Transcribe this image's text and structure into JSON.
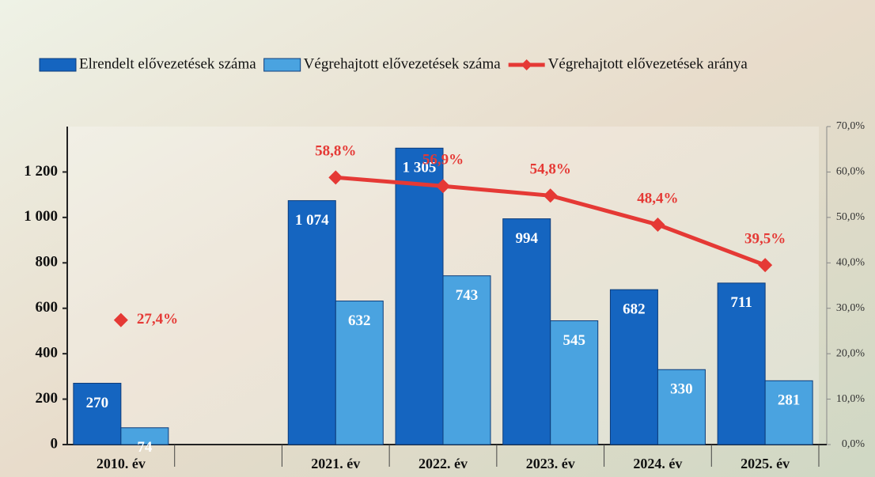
{
  "chart_data": {
    "type": "bar",
    "categories": [
      "2010. év",
      null,
      "2021. év",
      "2022. év",
      "2023. év",
      "2024. év",
      "2025. év"
    ],
    "series": [
      {
        "name": "Elrendelt elővezetések száma",
        "color": "#1565c0",
        "values": [
          270,
          null,
          1074,
          1305,
          994,
          682,
          711
        ],
        "value_labels": [
          "270",
          null,
          "1 074",
          "1 305",
          "994",
          "682",
          "711"
        ]
      },
      {
        "name": "Végrehajtott elővezetések száma",
        "color": "#4aa3e0",
        "values": [
          74,
          null,
          632,
          743,
          545,
          330,
          281
        ],
        "value_labels": [
          "74",
          null,
          "632",
          "743",
          "545",
          "330",
          "281"
        ]
      },
      {
        "name": "Végrehajtott elővezetések aránya",
        "color": "#e53935",
        "type": "line",
        "axis": "y2",
        "values": [
          27.4,
          null,
          58.8,
          56.9,
          54.8,
          48.4,
          39.5
        ],
        "value_labels": [
          "27,4%",
          null,
          "58,8%",
          "56,9%",
          "54,8%",
          "48,4%",
          "39,5%"
        ]
      }
    ],
    "ylim": [
      0,
      1400
    ],
    "yticks": [
      0,
      200,
      400,
      600,
      800,
      {
        "value": 1000,
        "label": "1 000"
      },
      {
        "value": 1200,
        "label": "1 200"
      }
    ],
    "y2lim": [
      0,
      70
    ],
    "y2ticks": [
      {
        "value": 0,
        "label": "0,0%"
      },
      {
        "value": 10,
        "label": "10,0%"
      },
      {
        "value": 20,
        "label": "20,0%"
      },
      {
        "value": 30,
        "label": "30,0%"
      },
      {
        "value": 40,
        "label": "40,0%"
      },
      {
        "value": 50,
        "label": "50,0%"
      },
      {
        "value": 60,
        "label": "60,0%"
      },
      {
        "value": 70,
        "label": "70,0%"
      }
    ],
    "legend": "top"
  }
}
